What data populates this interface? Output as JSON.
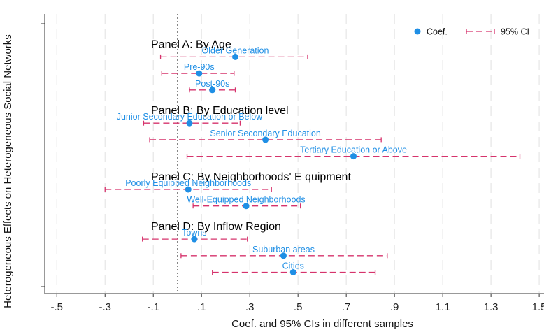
{
  "chart_data": {
    "type": "scatter",
    "xlabel": "Coef. and 95% CIs in different samples",
    "ylabel": "Heterogeneous Effects on Heterogeneous Social Networks",
    "xlim": [
      -0.55,
      1.52
    ],
    "xticks": [
      -0.5,
      -0.3,
      -0.1,
      0.1,
      0.3,
      0.5,
      0.7,
      0.9,
      1.1,
      1.3,
      1.5
    ],
    "xtick_labels": [
      "-.5",
      "-.3",
      "-.1",
      ".1",
      ".3",
      ".5",
      ".7",
      ".9",
      "1.1",
      "1.3",
      "1.5"
    ],
    "reference_line": 0,
    "grid": true,
    "legend": {
      "position": "top-right",
      "entries": [
        {
          "label": "Coef.",
          "marker": "dot"
        },
        {
          "label": "95% CI",
          "marker": "dashed-interval"
        }
      ]
    },
    "colors": {
      "coef": "#1f8fe5",
      "ci": "#d6336c",
      "label": "#1f8fe5",
      "grid": "#e6e6e6",
      "ref": "#777777"
    },
    "panels": [
      {
        "title": "Panel A: By Age",
        "row": 1.2
      },
      {
        "title": "Panel B: By Education level",
        "row": 5.2
      },
      {
        "title": "Panel C: By Neighborhoods' E quipment",
        "row": 9.2
      },
      {
        "title": "Panel D: By Inflow Region",
        "row": 12.2
      }
    ],
    "points": [
      {
        "label": "Older Generation",
        "coef": 0.24,
        "lo": -0.07,
        "hi": 0.54,
        "row": 2
      },
      {
        "label": "Pre-90s",
        "coef": 0.09,
        "lo": -0.065,
        "hi": 0.235,
        "row": 3
      },
      {
        "label": "Post-90s",
        "coef": 0.145,
        "lo": 0.05,
        "hi": 0.24,
        "row": 4
      },
      {
        "label": "Junior Secondary Education or Below",
        "coef": 0.05,
        "lo": -0.14,
        "hi": 0.26,
        "row": 6
      },
      {
        "label": "Senior Secondary Education",
        "coef": 0.365,
        "lo": -0.115,
        "hi": 0.845,
        "row": 7
      },
      {
        "label": "Tertiary Education or Above",
        "coef": 0.73,
        "lo": 0.04,
        "hi": 1.42,
        "row": 8
      },
      {
        "label": "Poorly Equipped Neighborhoods",
        "coef": 0.045,
        "lo": -0.3,
        "hi": 0.39,
        "row": 10
      },
      {
        "label": "Well-Equipped Neighborhoods",
        "coef": 0.285,
        "lo": 0.065,
        "hi": 0.51,
        "row": 11
      },
      {
        "label": "Towns",
        "coef": 0.07,
        "lo": -0.145,
        "hi": 0.29,
        "row": 13
      },
      {
        "label": "Suburban areas",
        "coef": 0.44,
        "lo": 0.015,
        "hi": 0.87,
        "row": 14
      },
      {
        "label": "Cities",
        "coef": 0.48,
        "lo": 0.145,
        "hi": 0.82,
        "row": 15
      }
    ]
  }
}
